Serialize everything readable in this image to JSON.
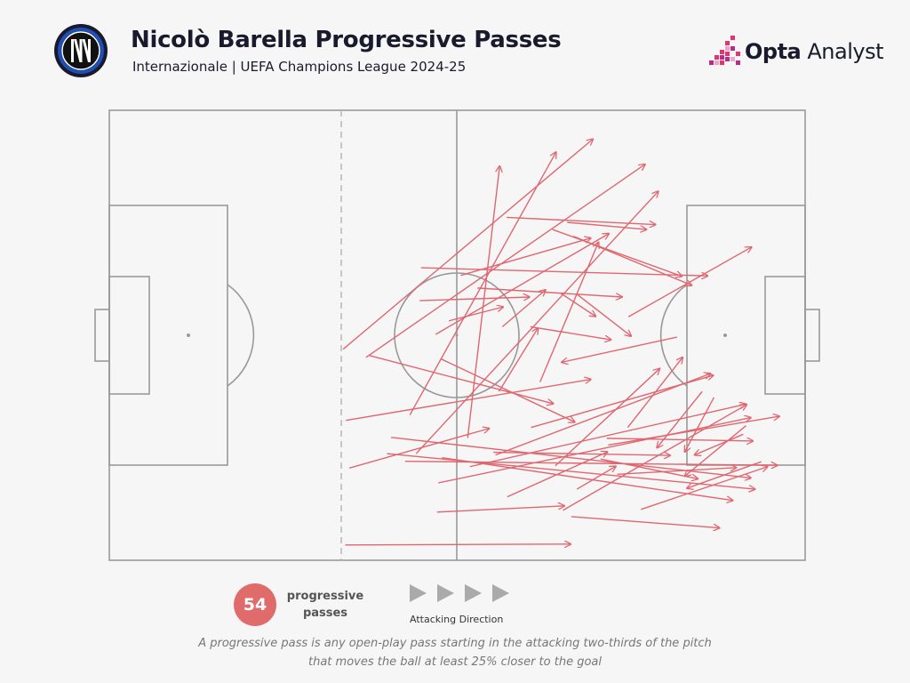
{
  "header": {
    "title": "Nicolò Barella Progressive Passes",
    "subtitle": "Internazionale | UEFA Champions League 2024-25",
    "team_logo_icon": "inter-milan-crest-icon"
  },
  "brand": {
    "name_bold": "Opta",
    "name_regular": " Analyst",
    "icon": "opta-pixel-logo-icon",
    "colors": [
      "#e3346f",
      "#b62b8e",
      "#f2a3c3"
    ]
  },
  "legend": {
    "count": "54",
    "count_label_line1": "progressive",
    "count_label_line2": "passes",
    "direction_label": "Attacking Direction",
    "direction_icon": "play-triangles-icon"
  },
  "footnote": {
    "line1": "A progressive pass is any open-play pass starting in the attacking two-thirds of the pitch",
    "line2": "that moves the ball at least 25% closer to the goal"
  },
  "colors": {
    "pass": "#e06670",
    "pitch_line": "#999999",
    "background": "#f6f6f6",
    "title": "#1a1a2e"
  },
  "chart_data": {
    "type": "pass_map",
    "x_range": [
      0,
      100
    ],
    "y_range": [
      0,
      100
    ],
    "attacking_direction": "left-to-right",
    "passes": [
      [
        33.6,
        46.9,
        69.5,
        93.6
      ],
      [
        36.9,
        45.1,
        77.0,
        88.0
      ],
      [
        43.2,
        32.3,
        64.2,
        90.7
      ],
      [
        44.1,
        23.7,
        78.9,
        82.0
      ],
      [
        46.9,
        50.2,
        71.8,
        72.6
      ],
      [
        51.5,
        27.2,
        56.1,
        87.6
      ],
      [
        57.1,
        76.2,
        78.5,
        74.6
      ],
      [
        66.7,
        72.0,
        83.7,
        61.1
      ],
      [
        52.9,
        60.5,
        73.7,
        58.5
      ],
      [
        44.6,
        57.7,
        60.4,
        58.5
      ],
      [
        67.3,
        59.0,
        75.0,
        49.8
      ],
      [
        60.5,
        51.9,
        72.1,
        49.0
      ],
      [
        56.5,
        51.9,
        62.7,
        60.1
      ],
      [
        44.8,
        65.0,
        86.0,
        63.2
      ],
      [
        74.6,
        54.1,
        92.3,
        69.6
      ],
      [
        64.1,
        21.0,
        79.1,
        42.6
      ],
      [
        74.5,
        29.5,
        82.4,
        45.1
      ],
      [
        65.2,
        11.1,
        91.6,
        34.6
      ],
      [
        66.4,
        9.7,
        87.7,
        7.2
      ],
      [
        73.0,
        19.1,
        90.1,
        20.6
      ],
      [
        76.4,
        11.3,
        94.6,
        20.8
      ],
      [
        71.7,
        25.6,
        96.3,
        32.0
      ],
      [
        48.8,
        53.2,
        56.6,
        56.3
      ],
      [
        37.4,
        45.5,
        63.8,
        34.8
      ],
      [
        47.6,
        44.8,
        66.9,
        30.7
      ],
      [
        34.0,
        31.1,
        69.2,
        40.2
      ],
      [
        34.5,
        20.5,
        54.6,
        29.3
      ],
      [
        33.9,
        3.4,
        66.3,
        3.6
      ],
      [
        47.1,
        10.7,
        65.4,
        12.1
      ],
      [
        40.5,
        27.3,
        92.2,
        18.3
      ],
      [
        39.9,
        23.7,
        92.8,
        15.8
      ],
      [
        42.5,
        22.0,
        96.0,
        21.1
      ],
      [
        47.8,
        22.8,
        89.6,
        13.3
      ],
      [
        47.3,
        17.2,
        92.2,
        31.7
      ],
      [
        51.8,
        20.8,
        91.5,
        34.7
      ],
      [
        55.5,
        23.4,
        86.4,
        41.5
      ],
      [
        55.2,
        24.0,
        80.6,
        23.3
      ],
      [
        70.6,
        22.5,
        84.6,
        18.1
      ],
      [
        71.5,
        27.1,
        92.5,
        26.5
      ],
      [
        60.6,
        29.5,
        86.8,
        41.1
      ],
      [
        56.0,
        37.5,
        61.6,
        51.6
      ],
      [
        61.9,
        39.6,
        70.3,
        70.7
      ],
      [
        63.7,
        73.5,
        82.3,
        63.1
      ],
      [
        64.9,
        59.3,
        69.9,
        54.2
      ],
      [
        65.8,
        75.1,
        77.2,
        73.5
      ],
      [
        81.6,
        49.6,
        65.0,
        44.0
      ],
      [
        85.2,
        37.5,
        78.7,
        25.0
      ],
      [
        91.1,
        28.0,
        84.1,
        23.4
      ],
      [
        93.7,
        21.9,
        83.0,
        16.0
      ],
      [
        86.9,
        36.2,
        82.7,
        24.1
      ],
      [
        91.5,
        29.9,
        82.7,
        18.7
      ],
      [
        57.2,
        14.1,
        71.6,
        24.1
      ],
      [
        67.2,
        15.8,
        72.8,
        20.9
      ],
      [
        50.5,
        63.3,
        69.2,
        71.6
      ]
    ]
  }
}
